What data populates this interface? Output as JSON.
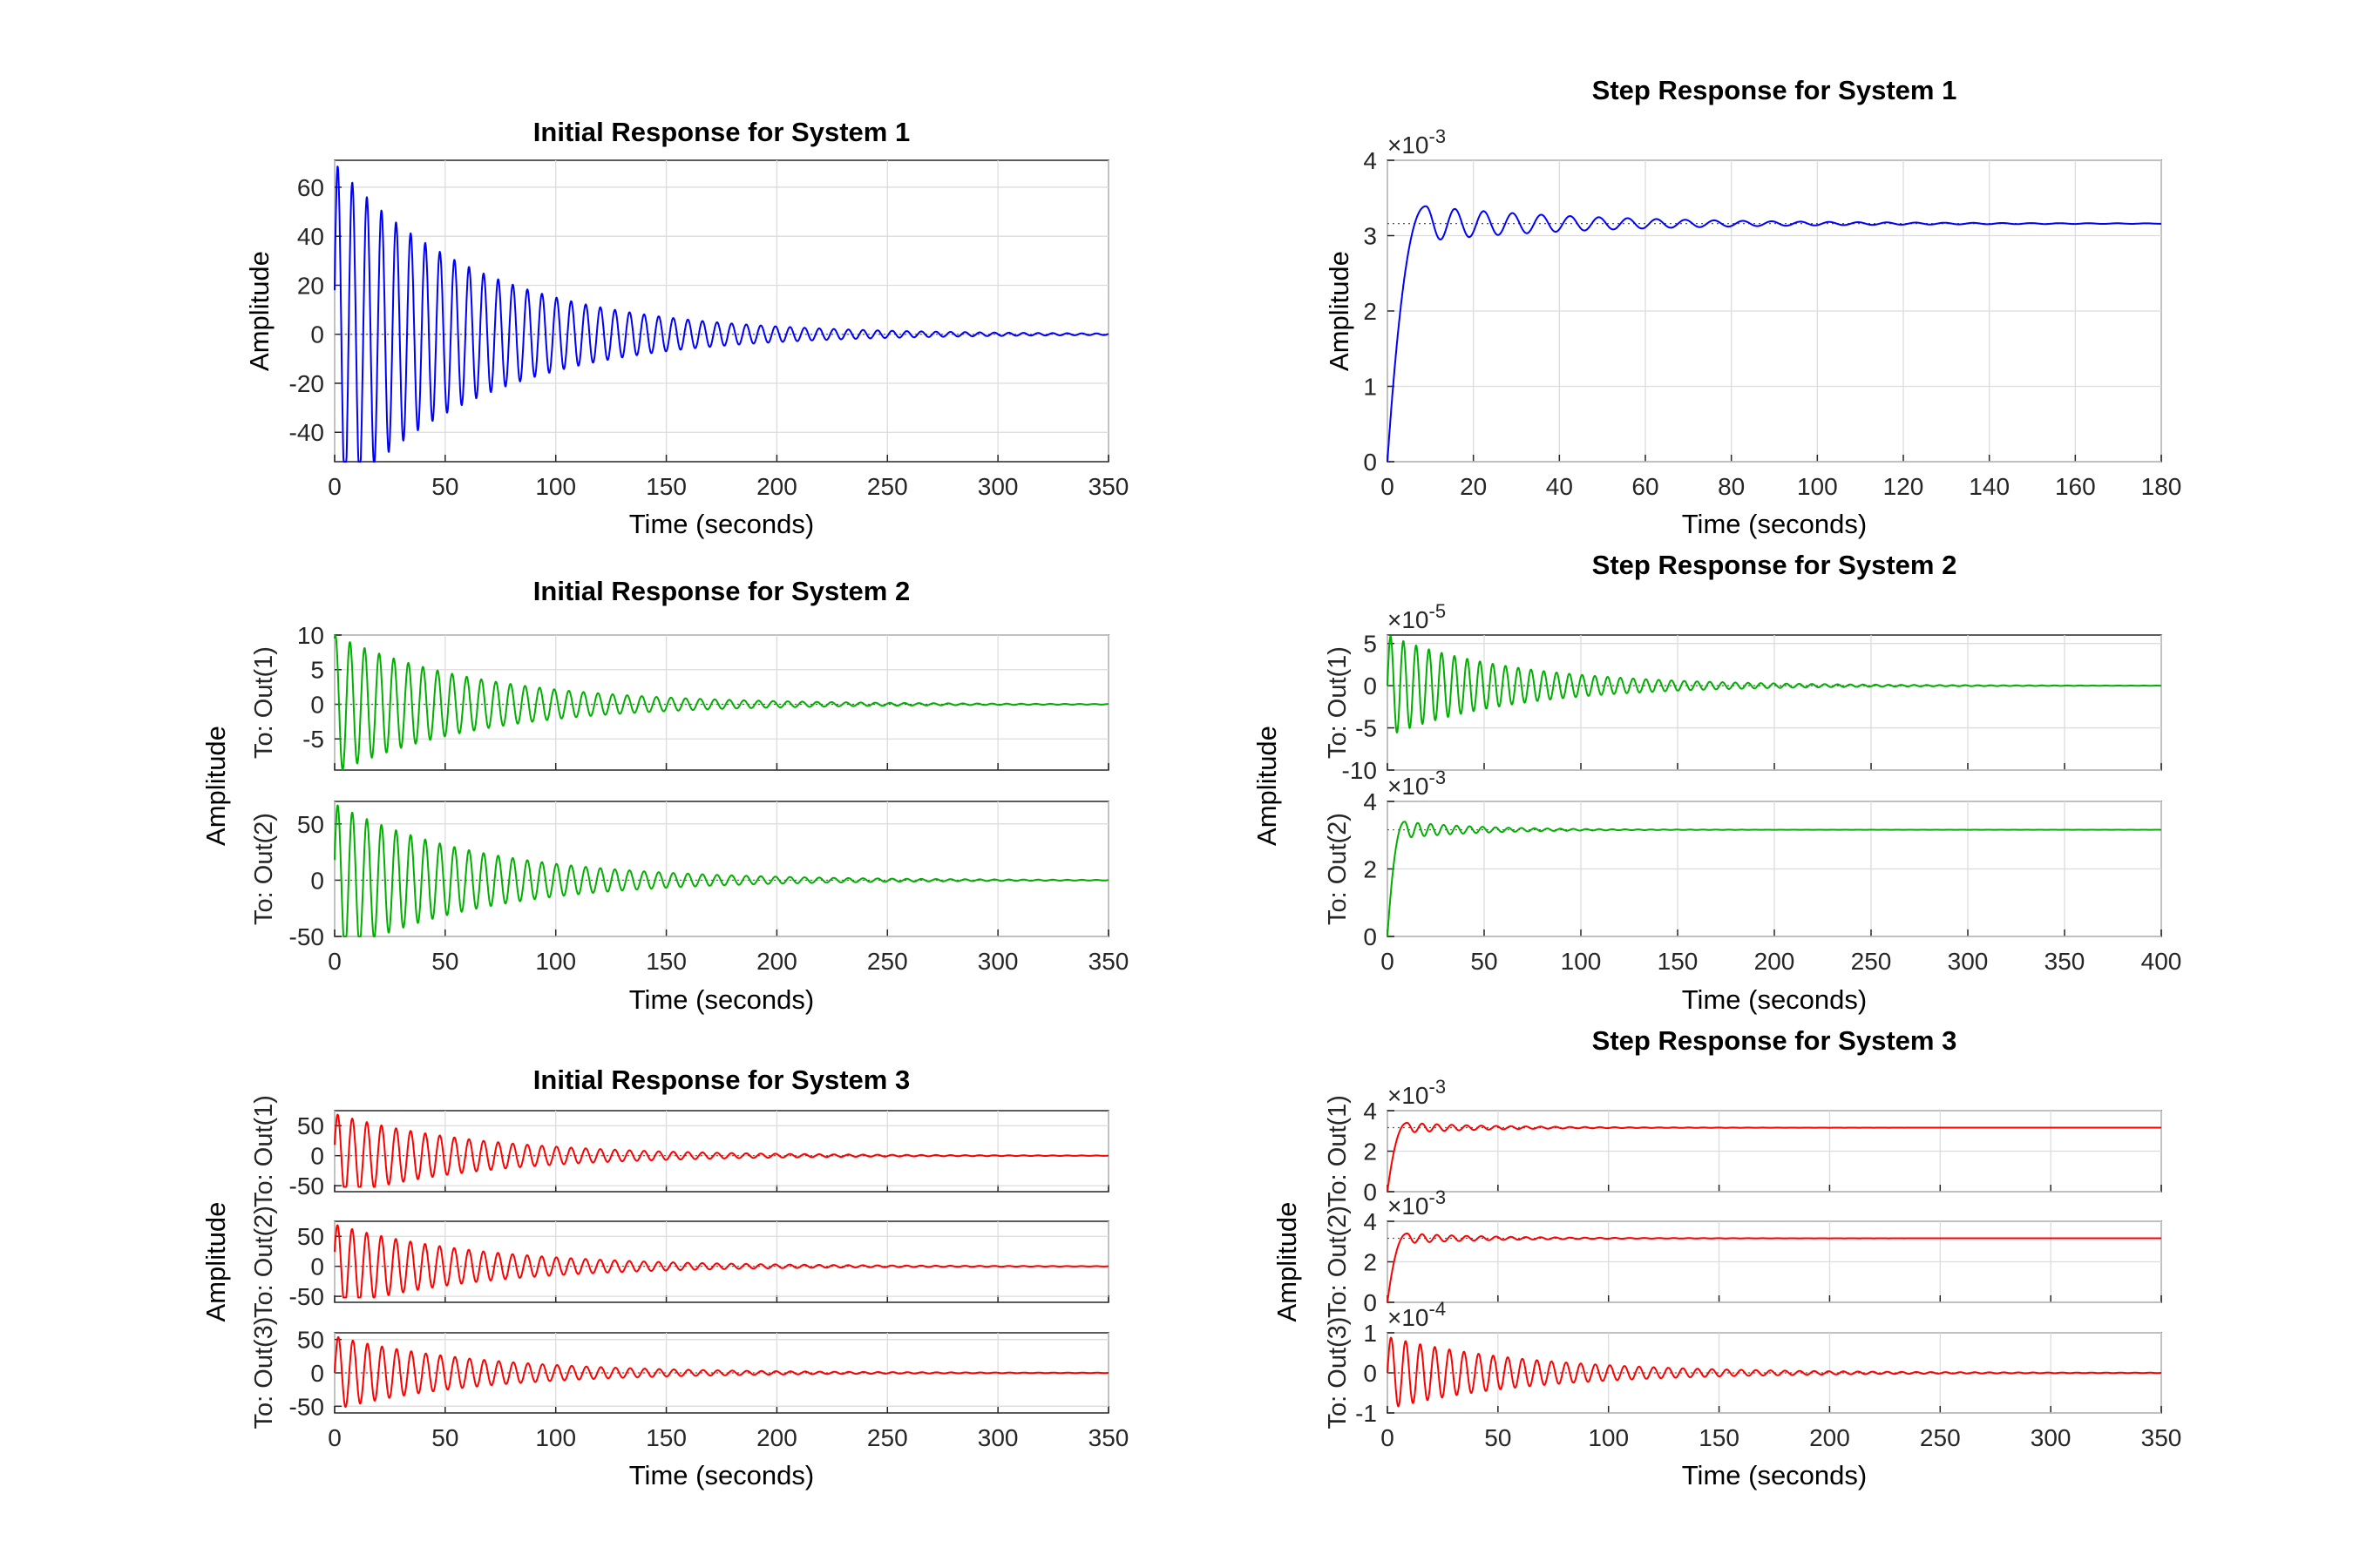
{
  "figure": {
    "xlabel": "Time (seconds)",
    "ylabel": "Amplitude"
  },
  "chart_data": [
    {
      "type": "line",
      "title": "Initial Response for System 1",
      "xlabel": "Time (seconds)",
      "ylabel": "Amplitude",
      "xlim": [
        0,
        350
      ],
      "xticks": [
        "0",
        "50",
        "100",
        "150",
        "200",
        "250",
        "300",
        "350"
      ],
      "grid": true,
      "color": "#0000ff",
      "subplots": [
        {
          "label": "",
          "ylim": [
            -52,
            71
          ],
          "yticks": [
            "-40",
            "-20",
            "0",
            "20",
            "40",
            "60"
          ],
          "exponent": "",
          "final": 0,
          "series": [
            {
              "kind": "oscillation",
              "start": 18,
              "peak": 70,
              "trough": -52,
              "period": 6.6,
              "tau": 65
            }
          ]
        }
      ]
    },
    {
      "type": "line",
      "title": "Step Response for System 1",
      "xlabel": "Time (seconds)",
      "ylabel": "Amplitude",
      "xlim": [
        0,
        180
      ],
      "xticks": [
        "0",
        "20",
        "40",
        "60",
        "80",
        "100",
        "120",
        "140",
        "160",
        "180"
      ],
      "grid": true,
      "color": "#0000ff",
      "subplots": [
        {
          "label": "",
          "ylim": [
            0,
            0.004
          ],
          "yticks": [
            "0",
            "1",
            "2",
            "3",
            "4"
          ],
          "exponent": "-3",
          "final": 0.00316,
          "series": [
            {
              "kind": "step",
              "final": 0.00316,
              "overshoot": 0.00339,
              "peak_time": 9,
              "period": 6.7,
              "tau": 40
            }
          ]
        }
      ]
    },
    {
      "type": "line",
      "title": "Initial Response for System 2",
      "xlabel": "Time (seconds)",
      "ylabel": "Amplitude",
      "xlim": [
        0,
        350
      ],
      "xticks": [
        "0",
        "50",
        "100",
        "150",
        "200",
        "250",
        "300",
        "350"
      ],
      "grid": true,
      "color": "#00b000",
      "subplots": [
        {
          "label": "To: Out(1)",
          "ylim": [
            -9.5,
            10
          ],
          "yticks": [
            "-5",
            "0",
            "5",
            "10"
          ],
          "exponent": "",
          "final": 0,
          "series": [
            {
              "kind": "oscillation",
              "start": 9.5,
              "peak": 10,
              "trough": -9.5,
              "period": 6.6,
              "tau": 65
            }
          ]
        },
        {
          "label": "To: Out(2)",
          "ylim": [
            -50,
            70
          ],
          "yticks": [
            "-50",
            "0",
            "50"
          ],
          "exponent": "",
          "final": 0,
          "series": [
            {
              "kind": "oscillation",
              "start": 18,
              "peak": 68,
              "trough": -50,
              "period": 6.6,
              "tau": 65
            }
          ]
        }
      ]
    },
    {
      "type": "line",
      "title": "Step Response for System 2",
      "xlabel": "Time (seconds)",
      "ylabel": "Amplitude",
      "xlim": [
        0,
        400
      ],
      "xticks": [
        "0",
        "50",
        "100",
        "150",
        "200",
        "250",
        "300",
        "350",
        "400"
      ],
      "grid": true,
      "color": "#00b000",
      "subplots": [
        {
          "label": "To: Out(1)",
          "ylim": [
            -0.0001,
            6e-05
          ],
          "yticks": [
            "-10",
            "-5",
            "0",
            "5"
          ],
          "exponent": "-5",
          "final": 0,
          "series": [
            {
              "kind": "oscillation",
              "start": 0,
              "peak": 6e-05,
              "trough": -6e-05,
              "period": 6.6,
              "tau": 65
            }
          ]
        },
        {
          "label": "To: Out(2)",
          "ylim": [
            0,
            0.004
          ],
          "yticks": [
            "0",
            "2",
            "4"
          ],
          "exponent": "-3",
          "final": 0.00316,
          "series": [
            {
              "kind": "step",
              "final": 0.00316,
              "overshoot": 0.0034,
              "peak_time": 9,
              "period": 6.7,
              "tau": 40
            }
          ]
        }
      ]
    },
    {
      "type": "line",
      "title": "Initial Response for System 3",
      "xlabel": "Time (seconds)",
      "ylabel": "Amplitude",
      "xlim": [
        0,
        350
      ],
      "xticks": [
        "0",
        "50",
        "100",
        "150",
        "200",
        "250",
        "300",
        "350"
      ],
      "grid": true,
      "color": "#ff0000",
      "subplots": [
        {
          "label": "To: Out(1)",
          "ylim": [
            -60,
            75
          ],
          "yticks": [
            "-50",
            "0",
            "50"
          ],
          "exponent": "",
          "final": 0,
          "series": [
            {
              "kind": "oscillation",
              "start": 18,
              "peak": 70,
              "trough": -52,
              "period": 6.6,
              "tau": 65
            }
          ]
        },
        {
          "label": "To: Out(2)",
          "ylim": [
            -60,
            75
          ],
          "yticks": [
            "-50",
            "0",
            "50"
          ],
          "exponent": "",
          "final": 0,
          "series": [
            {
              "kind": "oscillation",
              "start": 24,
              "peak": 70,
              "trough": -52,
              "period": 6.6,
              "tau": 65
            }
          ]
        },
        {
          "label": "To: Out(3)",
          "ylim": [
            -60,
            60
          ],
          "yticks": [
            "-50",
            "0",
            "50"
          ],
          "exponent": "",
          "final": 0,
          "series": [
            {
              "kind": "oscillation",
              "start": 0,
              "peak": 55,
              "trough": -55,
              "period": 6.6,
              "tau": 65
            }
          ]
        }
      ]
    },
    {
      "type": "line",
      "title": "Step Response for System 3",
      "xlabel": "Time (seconds)",
      "ylabel": "Amplitude",
      "xlim": [
        0,
        350
      ],
      "xticks": [
        "0",
        "50",
        "100",
        "150",
        "200",
        "250",
        "300",
        "350"
      ],
      "grid": true,
      "color": "#ff0000",
      "subplots": [
        {
          "label": "To: Out(1)",
          "ylim": [
            0,
            0.004
          ],
          "yticks": [
            "0",
            "2",
            "4"
          ],
          "exponent": "-3",
          "final": 0.00316,
          "series": [
            {
              "kind": "step",
              "final": 0.00316,
              "overshoot": 0.0034,
              "peak_time": 9,
              "period": 6.7,
              "tau": 40
            }
          ]
        },
        {
          "label": "To: Out(2)",
          "ylim": [
            0,
            0.004
          ],
          "yticks": [
            "0",
            "2",
            "4"
          ],
          "exponent": "-3",
          "final": 0.00316,
          "series": [
            {
              "kind": "step",
              "final": 0.00316,
              "overshoot": 0.0034,
              "peak_time": 9,
              "period": 6.7,
              "tau": 40
            }
          ]
        },
        {
          "label": "To: Out(3)",
          "ylim": [
            -0.0001,
            0.0001
          ],
          "yticks": [
            "-1",
            "0",
            "1"
          ],
          "exponent": "-4",
          "final": 0,
          "series": [
            {
              "kind": "oscillation",
              "start": 0,
              "peak": 9e-05,
              "trough": -9e-05,
              "period": 6.6,
              "tau": 65
            }
          ]
        }
      ]
    }
  ]
}
